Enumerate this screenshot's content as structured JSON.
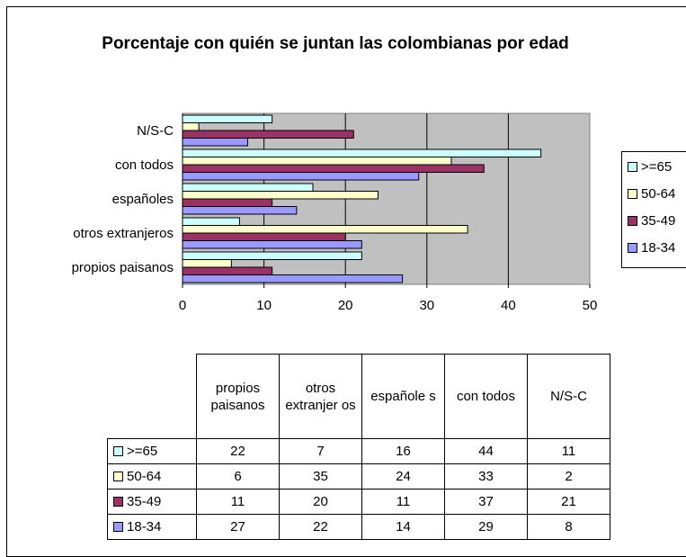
{
  "chart_data": {
    "type": "bar",
    "orientation": "horizontal",
    "title": "Porcentaje con quién se juntan las colombianas por edad",
    "categories": [
      "propios paisanos",
      "otros extranjeros",
      "españoles",
      "con todos",
      "N/S-C"
    ],
    "table_headers": [
      "propios paisanos",
      "otros extranjer os",
      "españole s",
      "con todos",
      "N/S-C"
    ],
    "series": [
      {
        "name": ">=65",
        "color": "#CCFFFF",
        "values": [
          22,
          7,
          16,
          44,
          11
        ]
      },
      {
        "name": "50-64",
        "color": "#FFFFCC",
        "values": [
          6,
          35,
          24,
          33,
          2
        ]
      },
      {
        "name": "35-49",
        "color": "#993366",
        "values": [
          11,
          20,
          11,
          37,
          21
        ]
      },
      {
        "name": "18-34",
        "color": "#9999FF",
        "values": [
          27,
          22,
          14,
          29,
          8
        ]
      }
    ],
    "xlim": [
      0,
      50
    ],
    "xticks": [
      "0",
      "10",
      "20",
      "30",
      "40",
      "50"
    ],
    "grid": true,
    "plot_background": "#C0C0C0",
    "legend_position": "right",
    "data_table": true
  }
}
